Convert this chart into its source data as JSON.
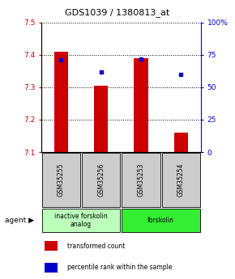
{
  "title": "GDS1039 / 1380813_at",
  "samples": [
    "GSM35255",
    "GSM35256",
    "GSM35253",
    "GSM35254"
  ],
  "bar_values": [
    7.41,
    7.305,
    7.39,
    7.16
  ],
  "percentile_values": [
    71,
    62,
    72,
    60
  ],
  "y_min": 7.1,
  "y_max": 7.5,
  "y_ticks": [
    7.1,
    7.2,
    7.3,
    7.4,
    7.5
  ],
  "y2_ticks": [
    0,
    25,
    50,
    75,
    100
  ],
  "bar_color": "#cc0000",
  "percentile_color": "#0000cc",
  "agent_groups": [
    {
      "label": "inactive forskolin\nanalog",
      "samples": [
        0,
        1
      ],
      "color": "#bbffbb"
    },
    {
      "label": "forskolin",
      "samples": [
        2,
        3
      ],
      "color": "#33ee33"
    }
  ],
  "left_color": "#cc0000",
  "right_color": "#0000cc",
  "sample_box_color": "#cccccc",
  "legend_items": [
    {
      "label": "transformed count",
      "color": "#cc0000"
    },
    {
      "label": "percentile rank within the sample",
      "color": "#0000cc"
    }
  ]
}
